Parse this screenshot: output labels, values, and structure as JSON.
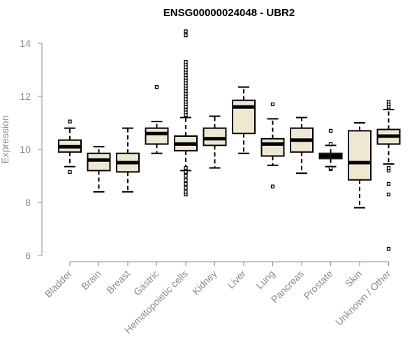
{
  "chart_data": {
    "type": "box",
    "title": "ENSG00000024048 - UBR2",
    "xlabel": "",
    "ylabel": "Expression",
    "ylim": [
      6,
      14
    ],
    "yticks": [
      6,
      8,
      10,
      12,
      14
    ],
    "box_fill": "#efe8d0",
    "box_stroke": "#000000",
    "axis_color": "#8c8c8c",
    "categories": [
      "Bladder",
      "Brain",
      "Breast",
      "Gastric",
      "Hematopoietic cells",
      "Kidney",
      "Liver",
      "Lung",
      "Pancreas",
      "Prostate",
      "Skin",
      "Unknown / Other"
    ],
    "boxes": [
      {
        "label": "Bladder",
        "whisker_low": 9.35,
        "q1": 9.9,
        "median": 10.1,
        "q3": 10.35,
        "whisker_high": 10.8,
        "outliers": [
          9.15,
          11.05
        ]
      },
      {
        "label": "Brain",
        "whisker_low": 8.4,
        "q1": 9.2,
        "median": 9.6,
        "q3": 9.85,
        "whisker_high": 10.1,
        "outliers": []
      },
      {
        "label": "Breast",
        "whisker_low": 8.4,
        "q1": 9.15,
        "median": 9.5,
        "q3": 9.85,
        "whisker_high": 10.8,
        "outliers": []
      },
      {
        "label": "Gastric",
        "whisker_low": 9.85,
        "q1": 10.2,
        "median": 10.6,
        "q3": 10.8,
        "whisker_high": 11.05,
        "outliers": [
          12.35
        ]
      },
      {
        "label": "Hematopoietic cells",
        "whisker_low": 9.2,
        "q1": 9.95,
        "median": 10.2,
        "q3": 10.5,
        "whisker_high": 11.2,
        "outliers": [
          8.3,
          8.4,
          8.55,
          8.7,
          8.85,
          9.0,
          9.1,
          9.15,
          9.25,
          9.3,
          11.3,
          11.4,
          11.5,
          11.6,
          11.7,
          11.8,
          11.9,
          12.0,
          12.1,
          12.2,
          12.3,
          12.4,
          12.5,
          12.6,
          12.7,
          12.8,
          12.9,
          13.0,
          13.1,
          13.2,
          13.3,
          14.3,
          14.45
        ]
      },
      {
        "label": "Kidney",
        "whisker_low": 9.3,
        "q1": 10.15,
        "median": 10.4,
        "q3": 10.8,
        "whisker_high": 11.25,
        "outliers": []
      },
      {
        "label": "Liver",
        "whisker_low": 9.85,
        "q1": 10.6,
        "median": 11.6,
        "q3": 11.85,
        "whisker_high": 12.35,
        "outliers": []
      },
      {
        "label": "Lung",
        "whisker_low": 9.4,
        "q1": 9.75,
        "median": 10.2,
        "q3": 10.4,
        "whisker_high": 11.15,
        "outliers": [
          8.6,
          11.7
        ]
      },
      {
        "label": "Pancreas",
        "whisker_low": 9.1,
        "q1": 9.9,
        "median": 10.35,
        "q3": 10.8,
        "whisker_high": 11.2,
        "outliers": []
      },
      {
        "label": "Prostate",
        "whisker_low": 9.35,
        "q1": 9.65,
        "median": 9.75,
        "q3": 9.85,
        "whisker_high": 10.15,
        "outliers": [
          9.25,
          9.3,
          10.2,
          10.7
        ]
      },
      {
        "label": "Skin",
        "whisker_low": 7.8,
        "q1": 8.85,
        "median": 9.5,
        "q3": 10.7,
        "whisker_high": 11.0,
        "outliers": []
      },
      {
        "label": "Unknown / Other",
        "whisker_low": 9.45,
        "q1": 10.2,
        "median": 10.5,
        "q3": 10.75,
        "whisker_high": 11.5,
        "outliers": [
          6.25,
          8.3,
          8.7,
          9.2,
          9.3,
          11.55,
          11.6,
          11.7,
          11.8
        ]
      }
    ]
  }
}
